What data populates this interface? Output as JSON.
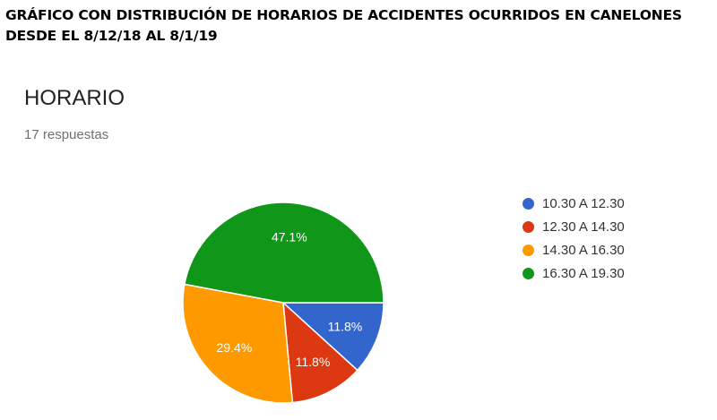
{
  "document": {
    "title": "GRÁFICO CON DISTRIBUCIÓN DE HORARIOS DE ACCIDENTES OCURRIDOS EN CANELONES DESDE EL 8/12/18 AL 8/1/19"
  },
  "form_panel": {
    "title": "HORARIO",
    "subtitle": "17 respuestas"
  },
  "chart_data": {
    "type": "pie",
    "title": "HORARIO",
    "subtitle": "17 respuestas",
    "legend_position": "right",
    "categories": [
      "10.30 A 12.30",
      "12.30 A 14.30",
      "14.30 A 16.30",
      "16.30 A 19.30"
    ],
    "values": [
      2,
      2,
      5,
      8
    ],
    "percent_labels": [
      "11.8%",
      "11.8%",
      "29.4%",
      "47.1%"
    ],
    "colors": [
      "#3366cc",
      "#dc3912",
      "#ff9900",
      "#109618"
    ]
  }
}
